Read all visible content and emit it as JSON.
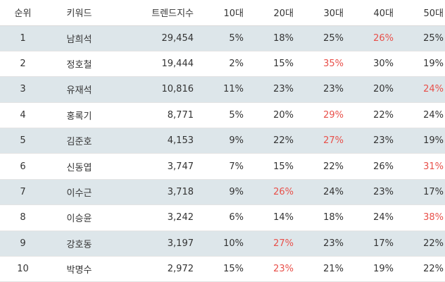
{
  "header": {
    "rank": "순위",
    "keyword": "키워드",
    "trend": "트렌드지수",
    "age10": "10대",
    "age20": "20대",
    "age30": "30대",
    "age40": "40대",
    "age50": "50대"
  },
  "colors": {
    "highlight": "#e8504a",
    "row_shade": "#dde6ea",
    "text": "#333333"
  },
  "rows": [
    {
      "rank": "1",
      "keyword": "남희석",
      "trend": "29,454",
      "age10": "5%",
      "age20": "18%",
      "age30": "25%",
      "age40": "26%",
      "age50": "25%",
      "highlight": "age40"
    },
    {
      "rank": "2",
      "keyword": "정호철",
      "trend": "19,444",
      "age10": "2%",
      "age20": "15%",
      "age30": "35%",
      "age40": "30%",
      "age50": "19%",
      "highlight": "age30"
    },
    {
      "rank": "3",
      "keyword": "유재석",
      "trend": "10,816",
      "age10": "11%",
      "age20": "23%",
      "age30": "23%",
      "age40": "20%",
      "age50": "24%",
      "highlight": "age50"
    },
    {
      "rank": "4",
      "keyword": "홍록기",
      "trend": "8,771",
      "age10": "5%",
      "age20": "20%",
      "age30": "29%",
      "age40": "22%",
      "age50": "24%",
      "highlight": "age30"
    },
    {
      "rank": "5",
      "keyword": "김준호",
      "trend": "4,153",
      "age10": "9%",
      "age20": "22%",
      "age30": "27%",
      "age40": "23%",
      "age50": "19%",
      "highlight": "age30"
    },
    {
      "rank": "6",
      "keyword": "신동엽",
      "trend": "3,747",
      "age10": "7%",
      "age20": "15%",
      "age30": "22%",
      "age40": "26%",
      "age50": "31%",
      "highlight": "age50"
    },
    {
      "rank": "7",
      "keyword": "이수근",
      "trend": "3,718",
      "age10": "9%",
      "age20": "26%",
      "age30": "24%",
      "age40": "23%",
      "age50": "17%",
      "highlight": "age20"
    },
    {
      "rank": "8",
      "keyword": "이승윤",
      "trend": "3,242",
      "age10": "6%",
      "age20": "14%",
      "age30": "18%",
      "age40": "24%",
      "age50": "38%",
      "highlight": "age50"
    },
    {
      "rank": "9",
      "keyword": "강호동",
      "trend": "3,197",
      "age10": "10%",
      "age20": "27%",
      "age30": "23%",
      "age40": "17%",
      "age50": "22%",
      "highlight": "age20"
    },
    {
      "rank": "10",
      "keyword": "박명수",
      "trend": "2,972",
      "age10": "15%",
      "age20": "23%",
      "age30": "21%",
      "age40": "19%",
      "age50": "22%",
      "highlight": "age20"
    }
  ]
}
